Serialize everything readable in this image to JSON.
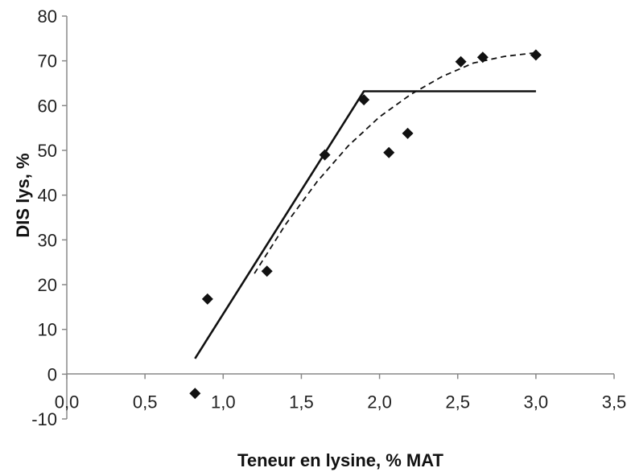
{
  "chart_data": {
    "type": "scatter",
    "title": "",
    "xlabel": "Teneur en lysine, % MAT",
    "ylabel": "DIS lys, %",
    "xlim": [
      0.0,
      3.5
    ],
    "ylim": [
      -10,
      80
    ],
    "x_ticks": [
      0.0,
      0.5,
      1.0,
      1.5,
      2.0,
      2.5,
      3.0,
      3.5
    ],
    "x_tick_labels": [
      "0,0",
      "0,5",
      "1,0",
      "1,5",
      "2,0",
      "2,5",
      "3,0",
      "3,5"
    ],
    "y_ticks": [
      -10,
      0,
      10,
      20,
      30,
      40,
      50,
      60,
      70,
      80
    ],
    "y_tick_labels": [
      "-10",
      "0",
      "10",
      "20",
      "30",
      "40",
      "50",
      "60",
      "70",
      "80"
    ],
    "grid": false,
    "legend": "none",
    "colors": {
      "points": "#111111",
      "line": "#111111",
      "axis": "#888888",
      "text": "#222222"
    },
    "series": [
      {
        "type": "scatter",
        "marker": "diamond",
        "x": [
          0.82,
          0.9,
          1.28,
          1.65,
          1.9,
          2.06,
          2.18,
          2.52,
          2.66,
          3.0
        ],
        "y": [
          -4.3,
          16.8,
          23.0,
          49.0,
          61.3,
          49.5,
          53.8,
          69.8,
          70.8,
          71.3
        ]
      },
      {
        "type": "line",
        "style": "solid",
        "x": [
          0.82,
          1.9,
          3.0
        ],
        "y": [
          3.5,
          63.2,
          63.2
        ]
      },
      {
        "type": "line",
        "style": "dashed",
        "x": [
          1.2,
          1.4,
          1.6,
          1.8,
          2.0,
          2.2,
          2.4,
          2.6,
          2.8,
          3.0
        ],
        "y": [
          22.5,
          33.5,
          43.0,
          51.0,
          57.5,
          62.5,
          66.5,
          69.5,
          71.0,
          71.8
        ]
      }
    ]
  }
}
